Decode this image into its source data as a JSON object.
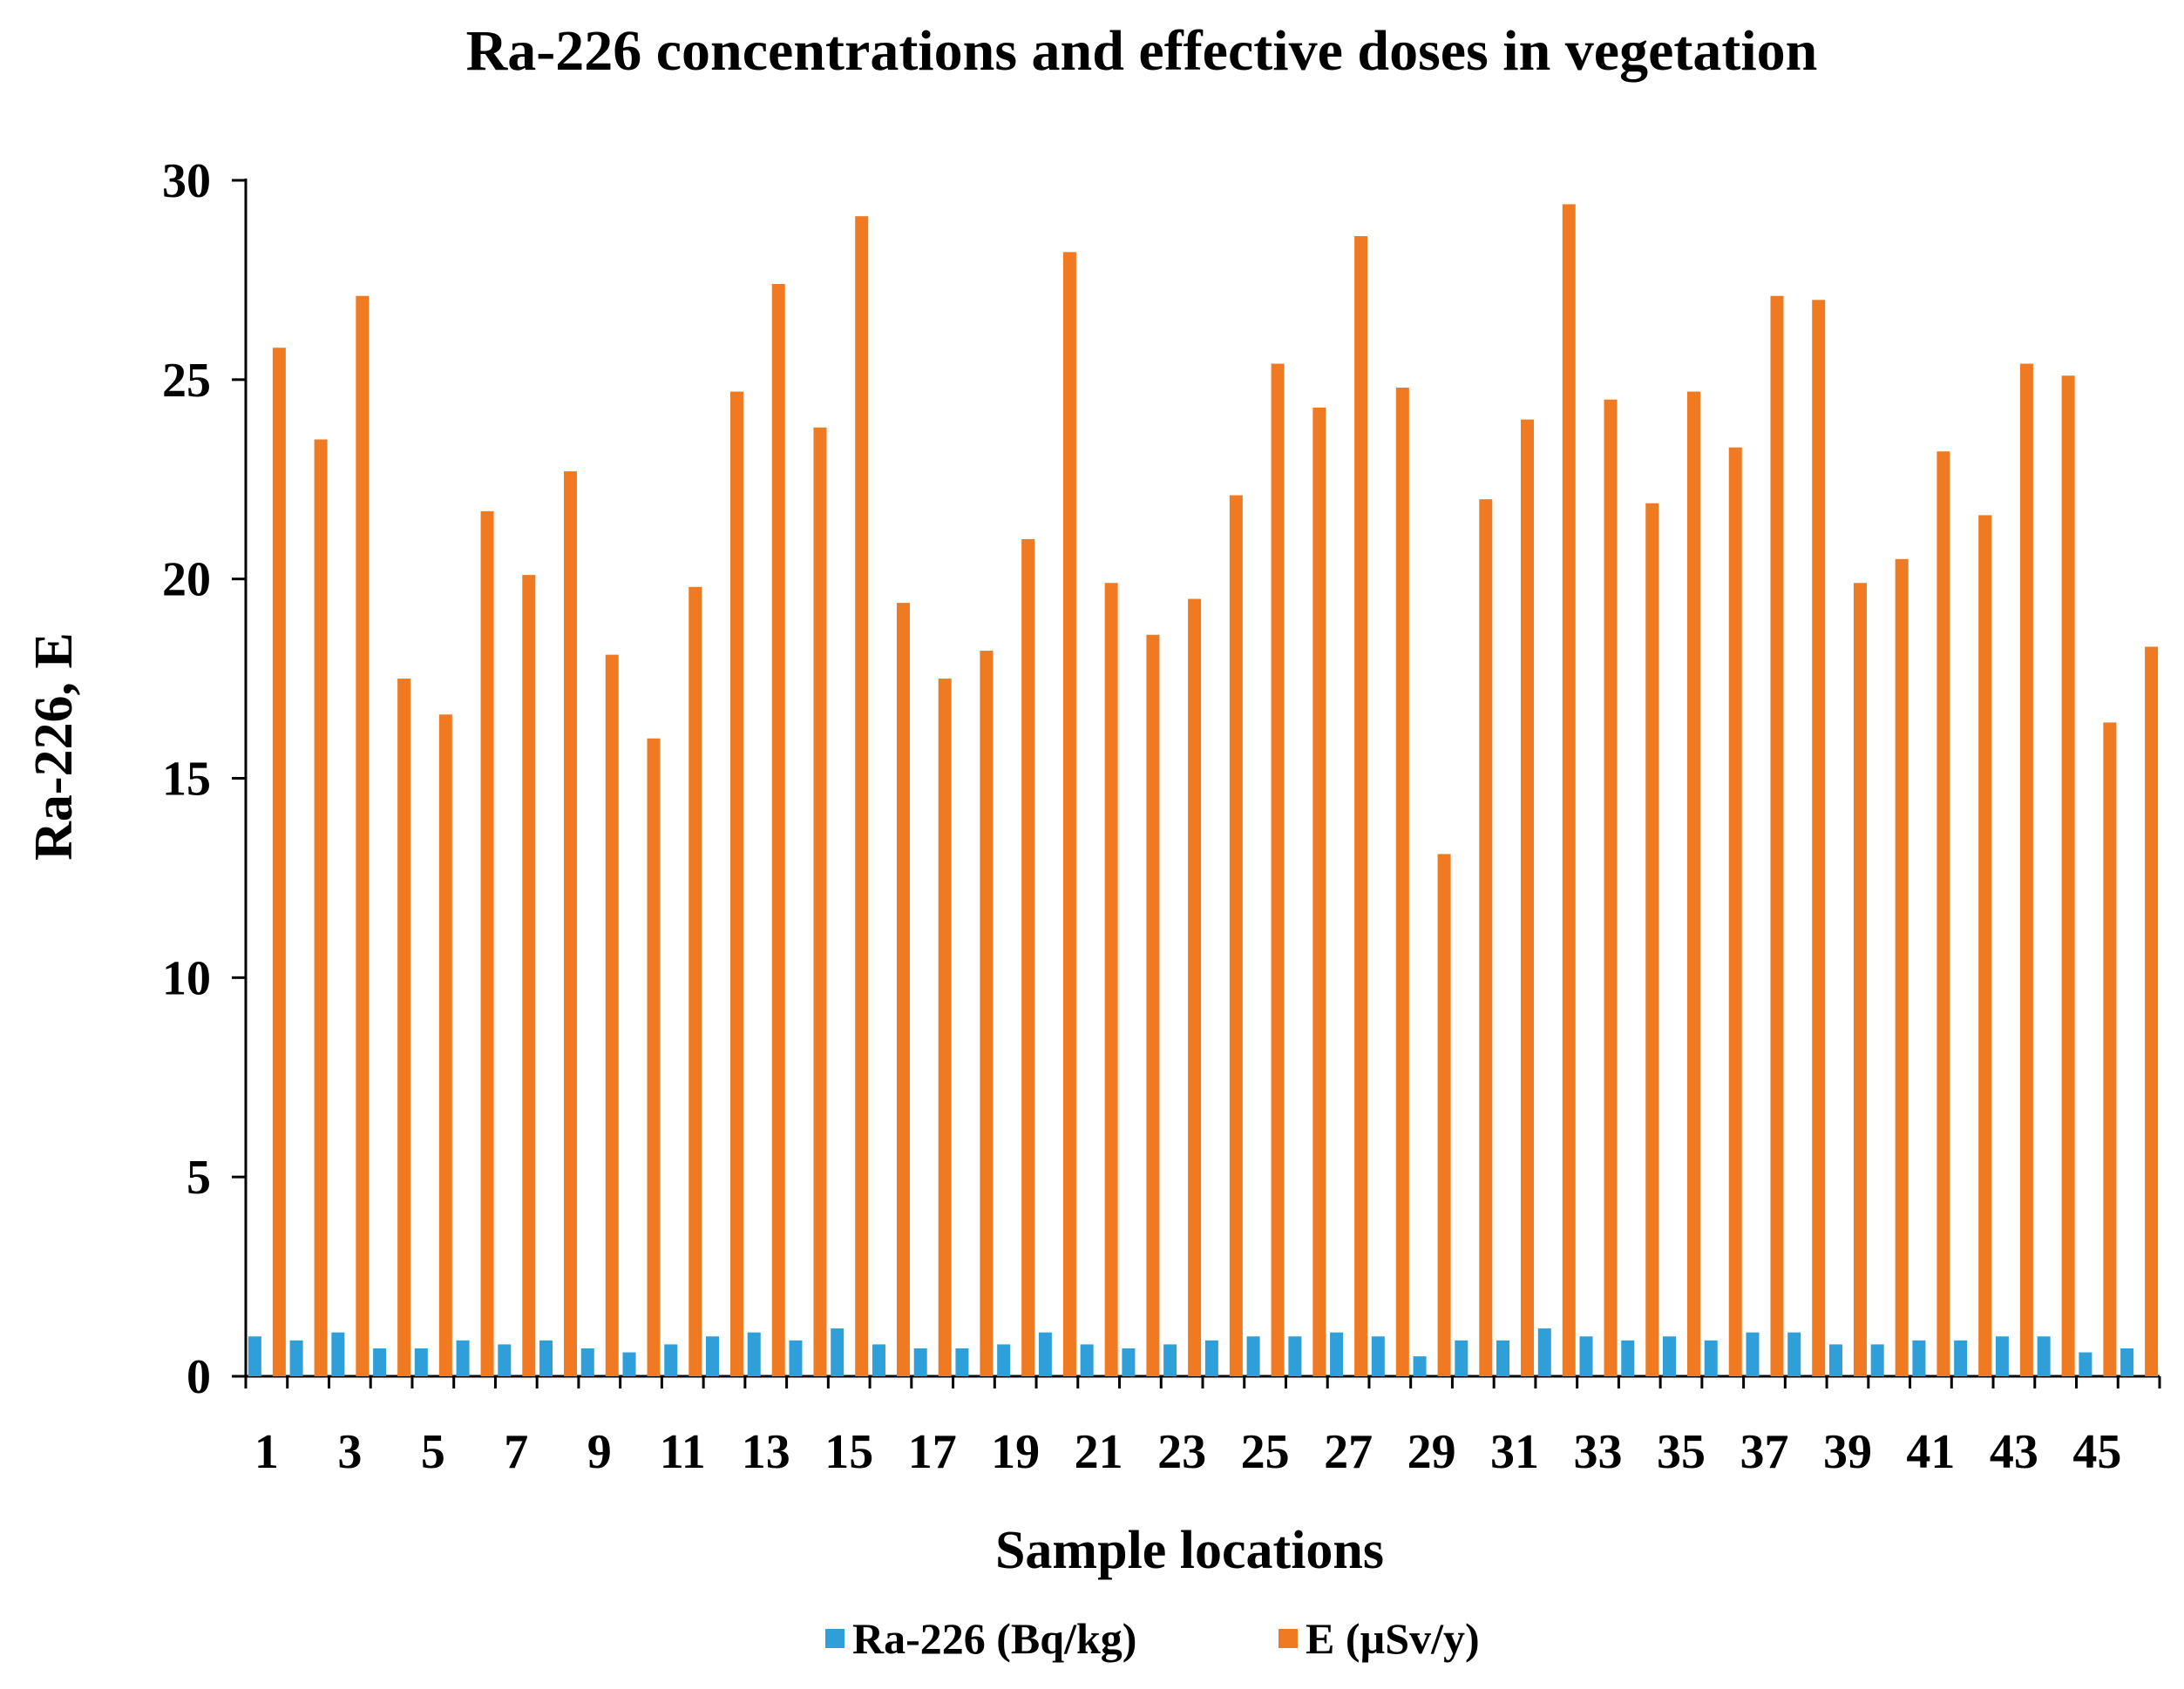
{
  "chart_data": {
    "type": "bar",
    "title": "Ra-226 concentrations and effective doses in vegetation",
    "xlabel": "Sample locations",
    "ylabel": "Ra-226, E",
    "ylim": [
      0,
      30
    ],
    "yticks": [
      0,
      5,
      10,
      15,
      20,
      25,
      30
    ],
    "grid": false,
    "legend_position": "bottom",
    "categories": [
      "1",
      "2",
      "3",
      "4",
      "5",
      "6",
      "7",
      "8",
      "9",
      "10",
      "11",
      "12",
      "13",
      "14",
      "15",
      "16",
      "17",
      "18",
      "19",
      "20",
      "21",
      "22",
      "23",
      "24",
      "25",
      "26",
      "27",
      "28",
      "29",
      "30",
      "31",
      "32",
      "33",
      "34",
      "35",
      "36",
      "37",
      "38",
      "39",
      "40",
      "41",
      "42",
      "43",
      "44",
      "45",
      "46"
    ],
    "tick_labels": [
      "1",
      "",
      "3",
      "",
      "5",
      "",
      "7",
      "",
      "9",
      "",
      "11",
      "",
      "13",
      "",
      "15",
      "",
      "17",
      "",
      "19",
      "",
      "21",
      "",
      "23",
      "",
      "25",
      "",
      "27",
      "",
      "29",
      "",
      "31",
      "",
      "33",
      "",
      "35",
      "",
      "37",
      "",
      "39",
      "",
      "41",
      "",
      "43",
      "",
      "45",
      ""
    ],
    "series": [
      {
        "name": "Ra-226 (Bq/kg)",
        "color": "#2e9fd8",
        "values": [
          1.0,
          0.9,
          1.1,
          0.7,
          0.7,
          0.9,
          0.8,
          0.9,
          0.7,
          0.6,
          0.8,
          1.0,
          1.1,
          0.9,
          1.2,
          0.8,
          0.7,
          0.7,
          0.8,
          1.1,
          0.8,
          0.7,
          0.8,
          0.9,
          1.0,
          1.0,
          1.1,
          1.0,
          0.5,
          0.9,
          0.9,
          1.2,
          1.0,
          0.9,
          1.0,
          0.9,
          1.1,
          1.1,
          0.8,
          0.8,
          0.9,
          0.9,
          1.0,
          1.0,
          0.6,
          0.7
        ]
      },
      {
        "name": "E (µSv/y)",
        "color": "#f07a22",
        "values": [
          25.8,
          23.5,
          27.1,
          17.5,
          16.6,
          21.7,
          20.1,
          22.7,
          18.1,
          16.0,
          19.8,
          24.7,
          27.4,
          23.8,
          29.1,
          19.4,
          17.5,
          18.2,
          21.0,
          28.2,
          19.9,
          18.6,
          19.5,
          22.1,
          25.4,
          24.3,
          28.6,
          24.8,
          13.1,
          22.0,
          24.0,
          29.4,
          24.5,
          21.9,
          24.7,
          23.3,
          27.1,
          27.0,
          19.9,
          20.5,
          23.2,
          21.6,
          25.4,
          25.1,
          16.4,
          18.3
        ]
      }
    ]
  }
}
